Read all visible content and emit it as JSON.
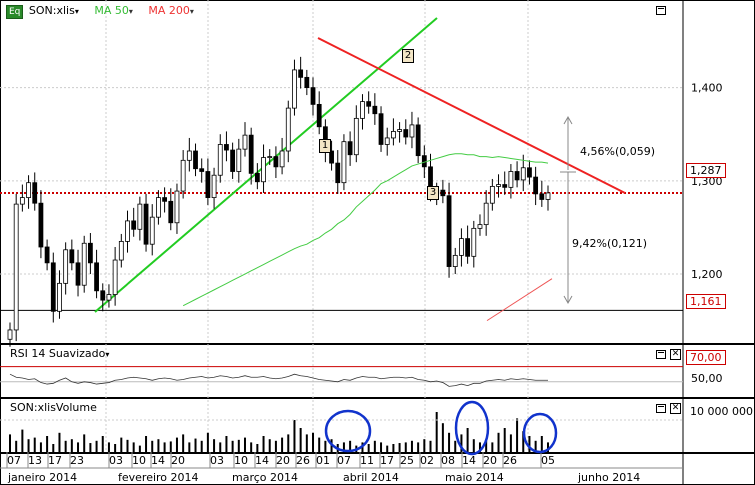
{
  "header": {
    "badge": "Eq",
    "symbol": "SON:xlis",
    "ma50_label": "MA 50",
    "ma200_label": "MA 200"
  },
  "rsi_panel": {
    "title": "RSI 14 Suavizado",
    "level_high": "70,00",
    "level_mid": "50,00"
  },
  "volume_panel": {
    "title": "SON:xlisVolume",
    "axis_label": "10 000 000"
  },
  "annotations": {
    "up_label": "4,56%(0,059)",
    "down_label": "9,42%(0,121)",
    "marker_1": "1",
    "marker_2": "2",
    "marker_3": "3"
  },
  "price_tags": {
    "last": "1,287",
    "low": "1,161"
  },
  "chart_data": {
    "type": "candlestick",
    "colors": {
      "up": "#ffffff",
      "down": "#000000",
      "ma50": "#44cc44",
      "ma200": "#ee5555",
      "trend_up": "#22cc22",
      "trend_down": "#ee2222",
      "resistance_dotted": "#cc0000",
      "highlight_circle": "#1133cc"
    },
    "y_axis": {
      "ticks": [
        "1,200",
        "1,300",
        "1,400"
      ],
      "range": [
        1.126,
        1.494
      ]
    },
    "x_axis": {
      "day_ticks": [
        "07",
        "13",
        "17",
        "23",
        "03",
        "10",
        "14",
        "20",
        "03",
        "10",
        "14",
        "20",
        "26",
        "01",
        "07",
        "11",
        "17",
        "25",
        "02",
        "08",
        "14",
        "20",
        "26",
        "05"
      ],
      "month_labels": [
        "janeiro 2014",
        "fevereiro 2014",
        "março 2014",
        "abril 2014",
        "maio 2014",
        "junho 2014"
      ]
    },
    "closes": [
      1.14,
      1.275,
      1.282,
      1.298,
      1.276,
      1.229,
      1.212,
      1.16,
      1.19,
      1.226,
      1.212,
      1.188,
      1.233,
      1.212,
      1.182,
      1.172,
      1.178,
      1.215,
      1.235,
      1.257,
      1.248,
      1.275,
      1.232,
      1.261,
      1.282,
      1.278,
      1.255,
      1.289,
      1.322,
      1.332,
      1.313,
      1.31,
      1.282,
      1.306,
      1.339,
      1.333,
      1.31,
      1.334,
      1.349,
      1.308,
      1.299,
      1.325,
      1.326,
      1.315,
      1.332,
      1.378,
      1.419,
      1.411,
      1.4,
      1.382,
      1.358,
      1.332,
      1.319,
      1.298,
      1.342,
      1.328,
      1.367,
      1.385,
      1.38,
      1.372,
      1.339,
      1.346,
      1.353,
      1.355,
      1.347,
      1.36,
      1.327,
      1.315,
      1.286,
      1.29,
      1.284,
      1.208,
      1.22,
      1.238,
      1.219,
      1.249,
      1.253,
      1.276,
      1.294,
      1.296,
      1.293,
      1.31,
      1.301,
      1.314,
      1.304,
      1.286,
      1.28,
      1.287
    ],
    "ma50": [
      null,
      null,
      null,
      null,
      null,
      null,
      null,
      null,
      null,
      null,
      null,
      null,
      null,
      null,
      null,
      null,
      null,
      null,
      null,
      null,
      null,
      null,
      null,
      null,
      null,
      null,
      null,
      null,
      null,
      null,
      null,
      null,
      null,
      null,
      null,
      null,
      null,
      null,
      null,
      null,
      null,
      null,
      null,
      null,
      null,
      null,
      null,
      1.23,
      1.232,
      1.236,
      1.239,
      1.244,
      1.248,
      1.254,
      1.258,
      1.264,
      1.272,
      1.278,
      1.284,
      1.29,
      1.297,
      1.3,
      1.304,
      1.308,
      1.312,
      1.316,
      1.318,
      1.32,
      1.322,
      1.324,
      1.326,
      1.328,
      1.329,
      1.329,
      1.328,
      1.328,
      1.326,
      1.326,
      1.325,
      1.326,
      1.325,
      1.324,
      1.323,
      1.322,
      1.321,
      1.32,
      1.32,
      1.319
    ],
    "ma200_range": [
      1.15,
      1.195
    ],
    "rsi": [
      60,
      56,
      55,
      53,
      54,
      49,
      47,
      48,
      52,
      55,
      50,
      48,
      50,
      49,
      47,
      48,
      49,
      52,
      53,
      55,
      56,
      55,
      54,
      52,
      54,
      55,
      54,
      52,
      53,
      55,
      56,
      57,
      55,
      56,
      58,
      57,
      55,
      56,
      58,
      56,
      56,
      57,
      55,
      54,
      55,
      57,
      60,
      58,
      57,
      55,
      53,
      52,
      51,
      50,
      53,
      52,
      55,
      57,
      56,
      56,
      54,
      55,
      56,
      56,
      55,
      56,
      53,
      52,
      50,
      51,
      49,
      44,
      45,
      47,
      45,
      48,
      48,
      51,
      52,
      53,
      52,
      54,
      53,
      54,
      53,
      52,
      52,
      52
    ],
    "volume": [
      0.55,
      0.35,
      0.7,
      0.4,
      0.45,
      0.3,
      0.5,
      0.25,
      0.6,
      0.35,
      0.4,
      0.3,
      0.55,
      0.28,
      0.35,
      0.5,
      0.3,
      0.25,
      0.45,
      0.38,
      0.3,
      0.2,
      0.5,
      0.35,
      0.4,
      0.3,
      0.33,
      0.45,
      0.55,
      0.3,
      0.42,
      0.35,
      0.6,
      0.4,
      0.3,
      0.5,
      0.35,
      0.38,
      0.45,
      0.3,
      0.25,
      0.5,
      0.4,
      0.35,
      0.45,
      0.55,
      1.0,
      0.75,
      0.55,
      0.6,
      0.45,
      0.35,
      0.4,
      0.25,
      0.3,
      0.35,
      0.2,
      0.3,
      0.25,
      0.35,
      0.3,
      0.2,
      0.25,
      0.28,
      0.3,
      0.35,
      0.3,
      0.4,
      0.35,
      1.25,
      0.9,
      0.6,
      0.35,
      0.55,
      0.75,
      0.4,
      0.3,
      0.35,
      0.3,
      0.6,
      0.75,
      0.55,
      1.05,
      0.65,
      0.5,
      0.35,
      0.5,
      0.3
    ]
  }
}
